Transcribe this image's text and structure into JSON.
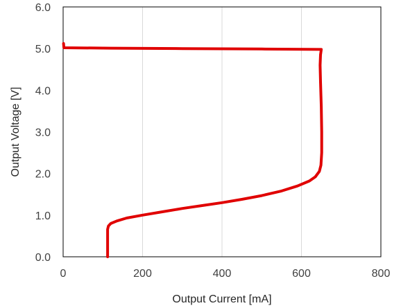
{
  "chart_data": {
    "type": "line",
    "xlabel": "Output Current [mA]",
    "ylabel": "Output Voltage [V]",
    "xlim": [
      0,
      800
    ],
    "ylim": [
      0,
      6
    ],
    "x_ticks": [
      "0",
      "200",
      "400",
      "600",
      "800"
    ],
    "y_ticks": [
      "0.0",
      "1.0",
      "2.0",
      "3.0",
      "4.0",
      "5.0",
      "6.0"
    ],
    "grid": "vertical",
    "legend": "none",
    "series": [
      {
        "color": "#e00000",
        "points": [
          [
            1,
            5.12
          ],
          [
            2,
            5.02
          ],
          [
            120,
            5.01
          ],
          [
            300,
            5.0
          ],
          [
            500,
            4.99
          ],
          [
            650,
            4.98
          ],
          [
            648,
            4.85
          ],
          [
            647,
            4.6
          ],
          [
            648,
            4.2
          ],
          [
            650,
            3.6
          ],
          [
            651,
            3.0
          ],
          [
            651,
            2.5
          ],
          [
            649,
            2.2
          ],
          [
            645,
            2.05
          ],
          [
            635,
            1.92
          ],
          [
            620,
            1.82
          ],
          [
            590,
            1.7
          ],
          [
            550,
            1.58
          ],
          [
            500,
            1.47
          ],
          [
            450,
            1.38
          ],
          [
            400,
            1.3
          ],
          [
            350,
            1.23
          ],
          [
            300,
            1.16
          ],
          [
            250,
            1.08
          ],
          [
            200,
            1.0
          ],
          [
            160,
            0.93
          ],
          [
            135,
            0.86
          ],
          [
            120,
            0.8
          ],
          [
            114,
            0.74
          ],
          [
            112,
            0.66
          ],
          [
            112,
            0.5
          ],
          [
            112,
            0.25
          ],
          [
            112,
            0.0
          ]
        ]
      }
    ]
  }
}
